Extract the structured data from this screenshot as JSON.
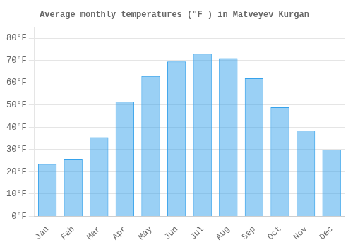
{
  "chart_data": {
    "type": "bar",
    "title": "Average monthly temperatures (°F ) in Matveyev Kurgan",
    "categories": [
      "Jan",
      "Feb",
      "Mar",
      "Apr",
      "May",
      "Jun",
      "Jul",
      "Aug",
      "Sep",
      "Oct",
      "Nov",
      "Dec"
    ],
    "values": [
      23.5,
      25.5,
      35.5,
      51.5,
      63,
      69.5,
      73,
      71,
      62,
      49,
      38.5,
      30
    ],
    "ylim": [
      0,
      85
    ],
    "yticks": [
      {
        "value": 0,
        "label": "0°F"
      },
      {
        "value": 10,
        "label": "10°F"
      },
      {
        "value": 20,
        "label": "20°F"
      },
      {
        "value": 30,
        "label": "30°F"
      },
      {
        "value": 40,
        "label": "40°F"
      },
      {
        "value": 50,
        "label": "50°F"
      },
      {
        "value": 60,
        "label": "60°F"
      },
      {
        "value": 70,
        "label": "70°F"
      },
      {
        "value": 80,
        "label": "80°F"
      }
    ],
    "grid": true
  }
}
